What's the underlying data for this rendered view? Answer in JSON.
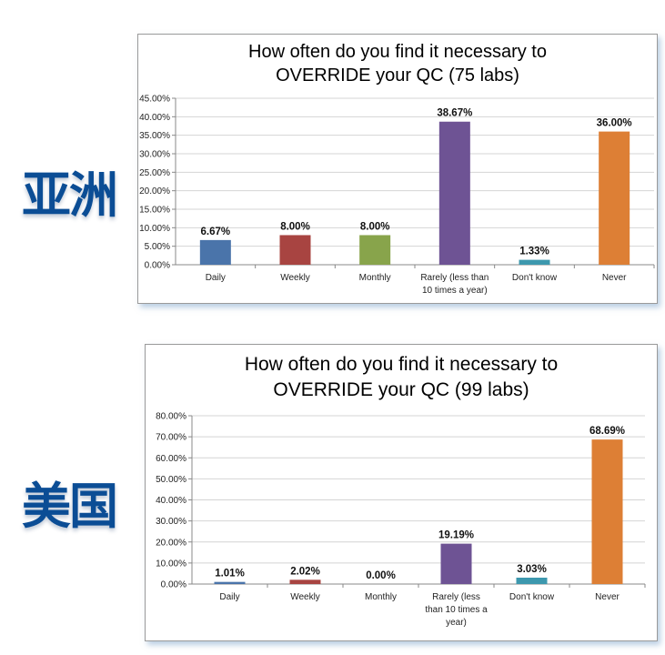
{
  "regions": [
    "亚洲",
    "美国"
  ],
  "chart_data": [
    {
      "type": "bar",
      "title_lines": [
        "How often do you find it necessary to",
        "OVERRIDE your QC (75 labs)"
      ],
      "categories": [
        [
          "Daily"
        ],
        [
          "Weekly"
        ],
        [
          "Monthly"
        ],
        [
          "Rarely (less than",
          "10 times a year)"
        ],
        [
          "Don't know"
        ],
        [
          "Never"
        ]
      ],
      "values": [
        6.67,
        8.0,
        8.0,
        38.67,
        1.33,
        36.0
      ],
      "data_labels": [
        "6.67%",
        "8.00%",
        "8.00%",
        "38.67%",
        "1.33%",
        "36.00%"
      ],
      "colors": [
        "#4a74aa",
        "#a84441",
        "#88a44b",
        "#6e5394",
        "#3d98ae",
        "#dd7f35"
      ],
      "ylim": [
        0,
        45
      ],
      "yticks": [
        "0.00%",
        "5.00%",
        "10.00%",
        "15.00%",
        "20.00%",
        "25.00%",
        "30.00%",
        "35.00%",
        "40.00%",
        "45.00%"
      ],
      "ystep": 5,
      "grid": true
    },
    {
      "type": "bar",
      "title_lines": [
        "How often do you find it necessary to",
        "OVERRIDE your QC (99 labs)"
      ],
      "categories": [
        [
          "Daily"
        ],
        [
          "Weekly"
        ],
        [
          "Monthly"
        ],
        [
          "Rarely (less",
          "than 10 times a",
          "year)"
        ],
        [
          "Don't know"
        ],
        [
          "Never"
        ]
      ],
      "values": [
        1.01,
        2.02,
        0.0,
        19.19,
        3.03,
        68.69
      ],
      "data_labels": [
        "1.01%",
        "2.02%",
        "0.00%",
        "19.19%",
        "3.03%",
        "68.69%"
      ],
      "colors": [
        "#4a74aa",
        "#a84441",
        "#88a44b",
        "#6e5394",
        "#3d98ae",
        "#dd7f35"
      ],
      "ylim": [
        0,
        80
      ],
      "yticks": [
        "0.00%",
        "10.00%",
        "20.00%",
        "30.00%",
        "40.00%",
        "50.00%",
        "60.00%",
        "70.00%",
        "80.00%"
      ],
      "ystep": 10,
      "grid": true
    }
  ]
}
